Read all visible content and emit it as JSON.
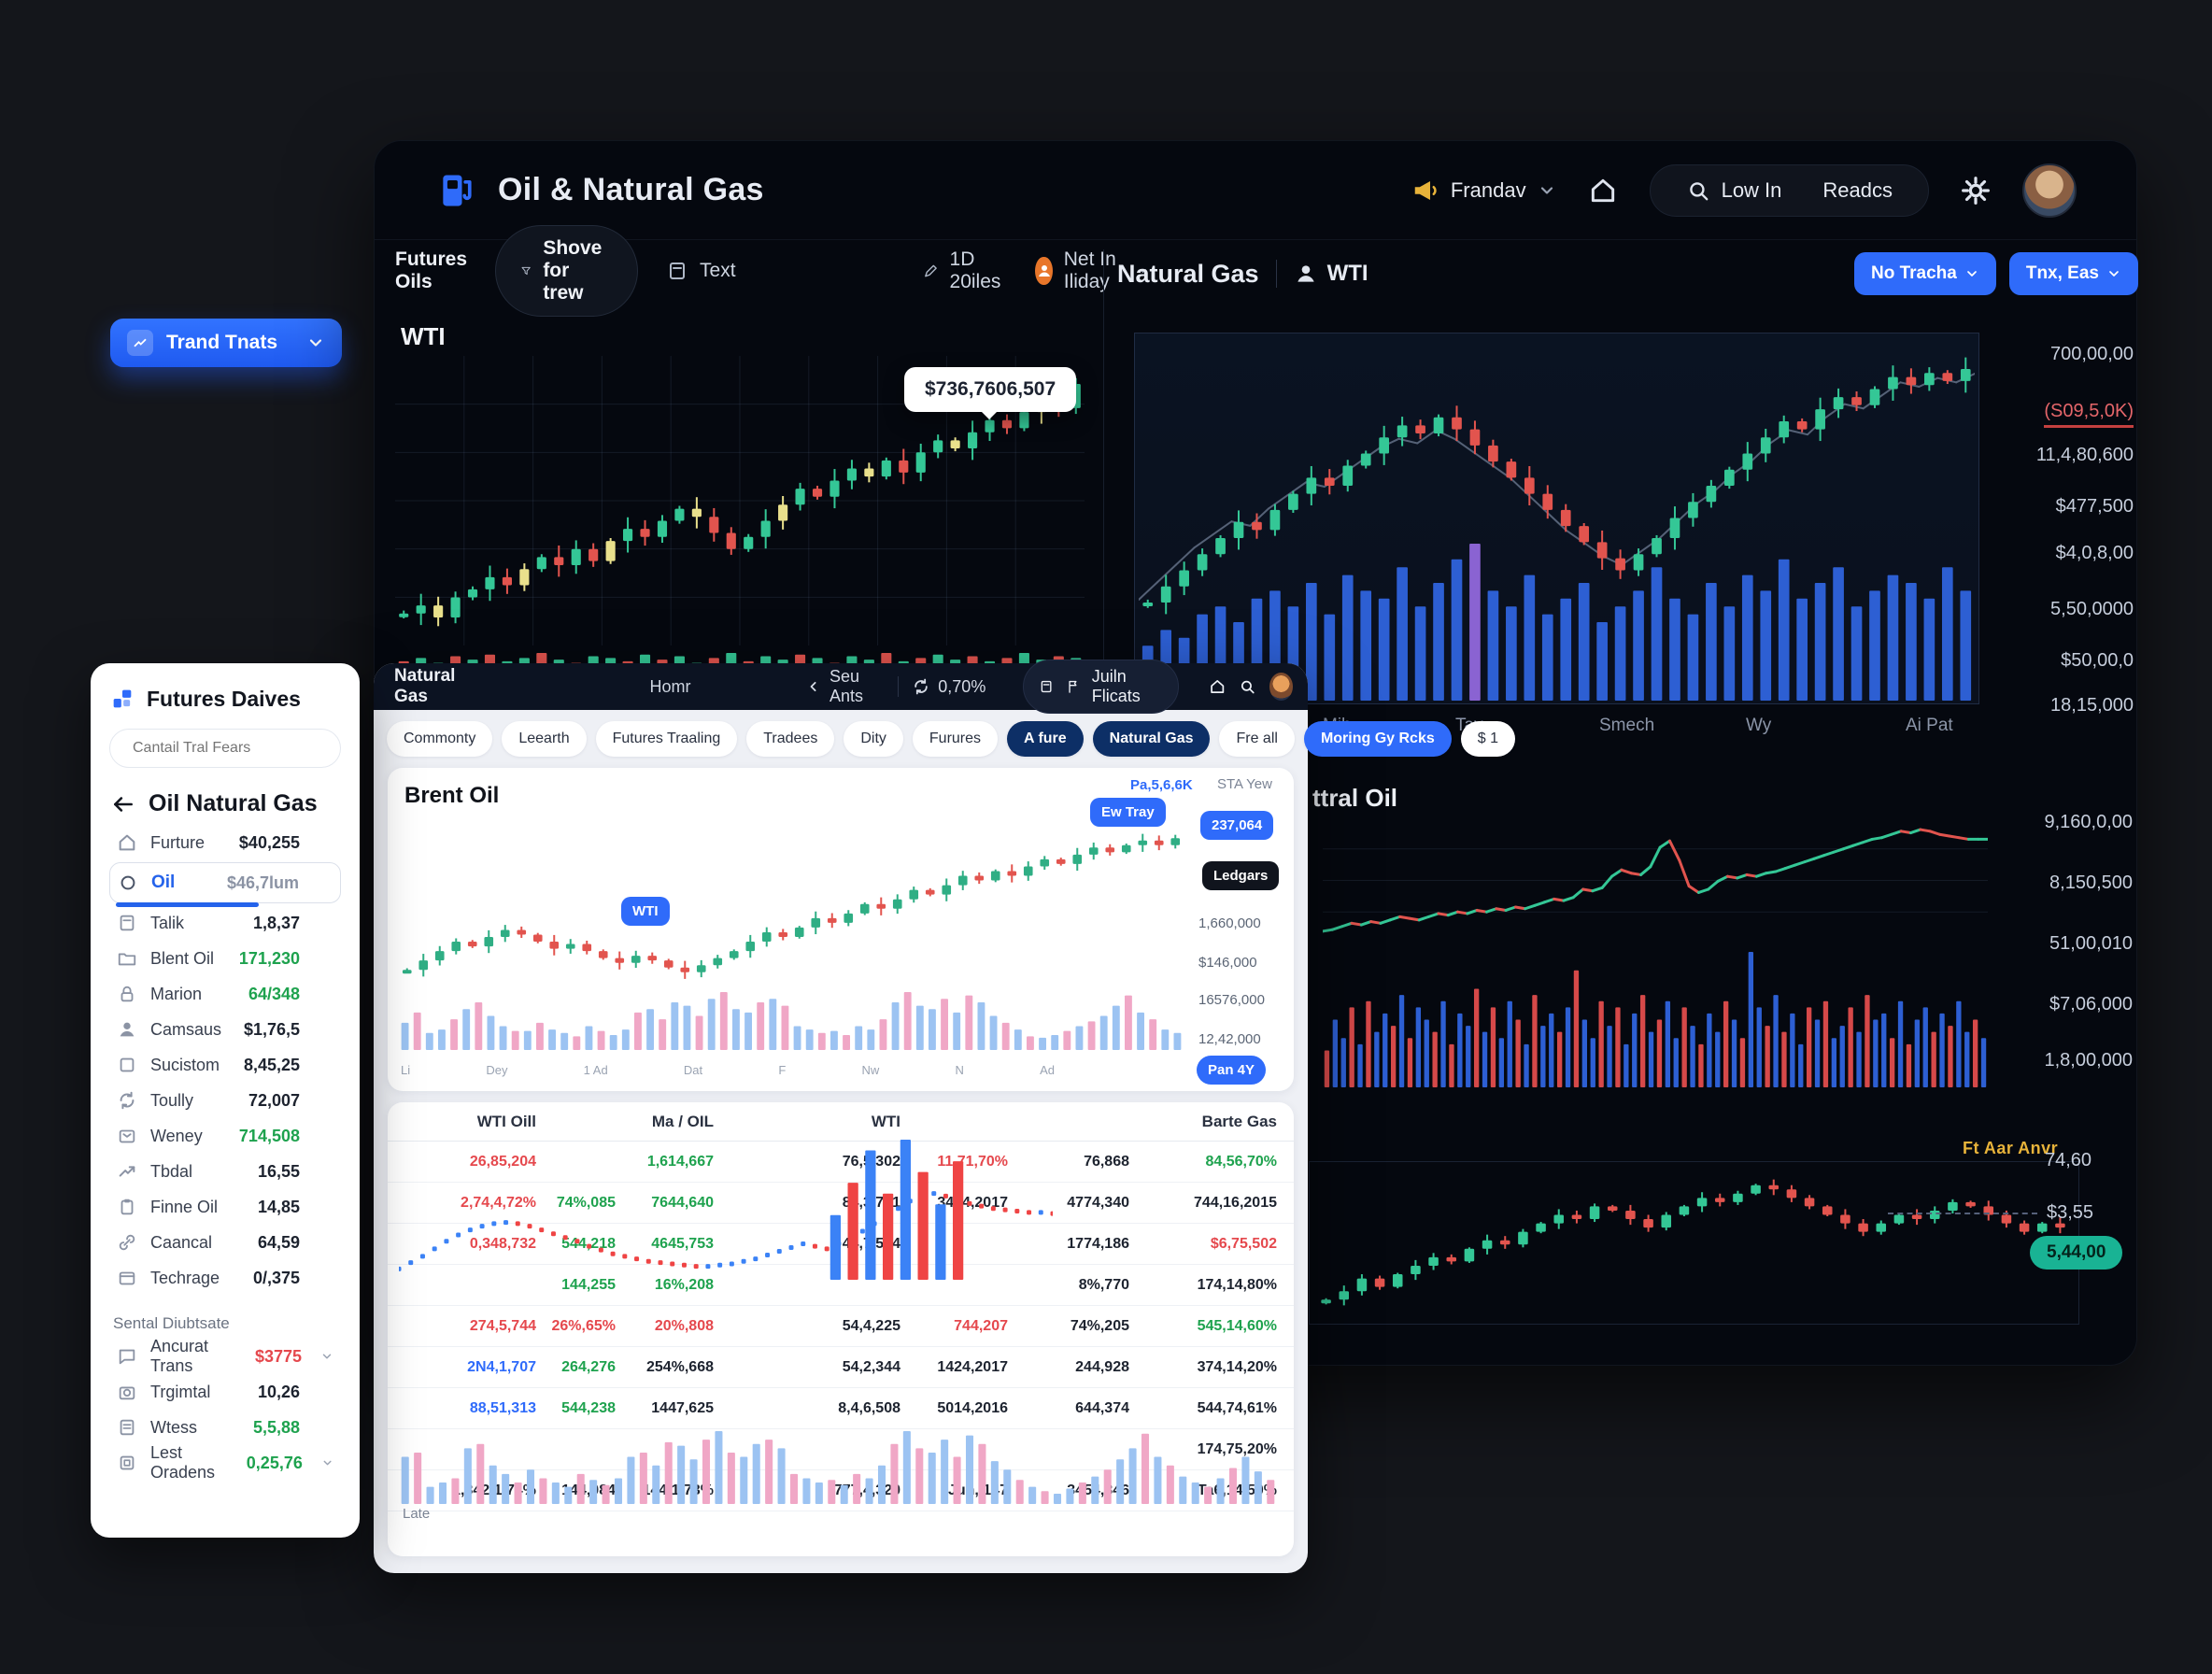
{
  "palette": {
    "accent_blue": "#2f6bfa",
    "navy_chip": "#0d2f66",
    "green": "#1ea24e",
    "red": "#e5484d",
    "candle_up": "#34c796",
    "candle_down": "#e2544e",
    "candle_accent": "#e9e08c",
    "vol_blue": "#2d5fd3",
    "vol_light_blue": "#9cc3f2",
    "vol_pink": "#f0a7c6",
    "teal_badge": "#19b394",
    "yellow": "#e8b33a"
  },
  "floating_button": {
    "label": "Trand Tnats"
  },
  "main_window": {
    "header": {
      "title": "Oil & Natural Gas",
      "market_label": "Frandav",
      "login_label": "Low In",
      "signup_label": "Readcs"
    },
    "left_panel": {
      "toolbar": {
        "title": "Futures Oils",
        "filter_label": "Shove for trew",
        "text_label": "Text",
        "range_label": "1D 20iles",
        "net_label": "Net In Iliday"
      },
      "symbol": "WTI",
      "tooltip_value": "$736,7606,507"
    },
    "right_panel": {
      "title": "Natural Gas",
      "symbol": "WTI",
      "button_primary": "No Tracha",
      "button_secondary": "Tnx, Eas",
      "y_labels": [
        "700,00,00",
        "(S09,5,0K)",
        "11,4,80,600",
        "$477,500",
        "$4,0,8,00",
        "5,50,0000",
        "$50,00,0",
        "18,15,000"
      ],
      "x_labels": [
        "Mih",
        "Tav",
        "Smech",
        "Wy",
        "Ai Pat"
      ]
    },
    "mid_panel": {
      "title": "ttral Oil",
      "y_labels": [
        "9,160,0,00",
        "8,150,500",
        "51,00,010",
        "$7,06,000",
        "1,8,00,000"
      ]
    },
    "bottom_panel": {
      "annotation": "Ft Aar Anvr",
      "y_label_top": "74,60",
      "y_label_mid": "$3,55",
      "price_badge": "5,44,00"
    }
  },
  "sidebar": {
    "title": "Futures Daives",
    "search_placeholder": "Cantail Tral Fears",
    "back_heading": "Oil Natural Gas",
    "items": [
      {
        "icon": "home",
        "label": "Furture",
        "value": "$40,255",
        "vc": "k"
      },
      {
        "icon": "circle",
        "label": "Oil",
        "value": "$46,7lum",
        "vc": "gr",
        "selected": true
      },
      {
        "icon": "doc",
        "label": "Talik",
        "value": "1,8,37",
        "vc": "k"
      },
      {
        "icon": "folder",
        "label": "Blent Oil",
        "value": "171,230",
        "vc": "g"
      },
      {
        "icon": "lock",
        "label": "Marion",
        "value": "64/348",
        "vc": "g"
      },
      {
        "icon": "person",
        "label": "Camsaus",
        "value": "$1,76,5",
        "vc": "k"
      },
      {
        "icon": "square",
        "label": "Sucistom",
        "value": "8,45,25",
        "vc": "k"
      },
      {
        "icon": "refresh",
        "label": "Toully",
        "value": "72,007",
        "vc": "k"
      },
      {
        "icon": "mail",
        "label": "Weney",
        "value": "714,508",
        "vc": "g"
      },
      {
        "icon": "trend",
        "label": "Tbdal",
        "value": "16,55",
        "vc": "k"
      },
      {
        "icon": "clipboard",
        "label": "Finne Oil",
        "value": "14,85",
        "vc": "k"
      },
      {
        "icon": "link",
        "label": "Caancal",
        "value": "64,59",
        "vc": "k"
      },
      {
        "icon": "card",
        "label": "Techrage",
        "value": "0/,375",
        "vc": "k"
      }
    ],
    "section2": "Sental Diubtsate",
    "items2": [
      {
        "icon": "chat",
        "label": "Ancurat Trans",
        "value": "$3775",
        "vc": "r",
        "chev": true
      },
      {
        "icon": "camera",
        "label": "Trgimtal",
        "value": "10,26",
        "vc": "k"
      },
      {
        "icon": "note",
        "label": "Wtess",
        "value": "5,5,88",
        "vc": "g"
      },
      {
        "icon": "grid",
        "label": "Lest Oradens",
        "value": "0,25,76",
        "vc": "g",
        "chev": true
      }
    ]
  },
  "white_window": {
    "titlebar": {
      "title": "Natural Gas",
      "center": "Homr",
      "back_label": "Seu Ants",
      "percent": "0,70%",
      "pill_label": "Juiln Flicats"
    },
    "nav_chips": [
      {
        "label": "Commonty",
        "style": "light"
      },
      {
        "label": "Leearth",
        "style": "light"
      },
      {
        "label": "Futures Traaling",
        "style": "light"
      },
      {
        "label": "Tradees",
        "style": "light"
      },
      {
        "label": "Dity",
        "style": "light"
      },
      {
        "label": "Furures",
        "style": "light"
      },
      {
        "label": "A fure",
        "style": "navy"
      },
      {
        "label": "Natural Gas",
        "style": "navy"
      },
      {
        "label": "Fre all",
        "style": "light"
      },
      {
        "label": "Moring Gy Rcks",
        "style": "blue"
      },
      {
        "label": "$ 1",
        "style": "light"
      }
    ],
    "chart": {
      "title": "Brent Oil",
      "link": "Pa,5,6,6K",
      "muted": "STA Yew",
      "badge_mid": "WTI",
      "badge_top": "Ew Tray",
      "badge_value": "237,064",
      "badge_dark": "Ledgars",
      "badge_bottom": "Pan 4Y",
      "y_labels": [
        "1,660,000",
        "$146,000",
        "16576,000",
        "12,42,000"
      ],
      "x_labels": [
        "Li",
        "Dey",
        "1 Ad",
        "Dat",
        "F",
        "Nw",
        "N",
        "Ad"
      ]
    },
    "table": {
      "headers": [
        "WTI Oill",
        "",
        "Ma / OIL",
        "WTI",
        "",
        "",
        "Barte Gas"
      ],
      "rows": [
        [
          "26,85,204|r",
          "",
          "1,614,667|g",
          "76,5,302|k",
          "11,71,70%|r",
          "76,868|k",
          "84,56,70%|g"
        ],
        [
          "2,74,4,72%|r",
          "74%,085|g",
          "7644,640|g",
          "84,3,771|k",
          "3414,2017|k",
          "4774,340|k",
          "744,16,2015|k"
        ],
        [
          "0,348,732|r",
          "544,218|g",
          "4645,753|g",
          "44,7,574|k",
          "",
          "1774,186|k",
          "$6,75,502|r"
        ],
        [
          "",
          "144,255|g",
          "16%,208|g",
          "",
          "",
          "8%,770|k",
          "174,14,80%|k"
        ],
        [
          "274,5,744|r",
          "26%,65%|r",
          "20%,808|r",
          "54,4,225|k",
          "744,207|r",
          "74%,205|k",
          "545,14,60%|g"
        ],
        [
          "2N4,1,707|b",
          "264,276|g",
          "254%,668|k",
          "54,2,344|k",
          "1424,2017|k",
          "244,928|k",
          "374,14,20%|k"
        ],
        [
          "88,51,313|b",
          "544,238|g",
          "1447,625|k",
          "8,4,6,508|k",
          "5014,2016|k",
          "644,374|k",
          "544,74,61%|k"
        ],
        [
          "",
          "",
          "",
          "",
          "",
          "",
          "174,75,20%|k"
        ],
        [
          "1,342,1,74%|k",
          "144,084|k",
          "144,1,73%|k",
          "777,4,320|k",
          "Jun, 147|k",
          "3454,846|k",
          "Ta6,14,50%|k"
        ]
      ],
      "footer": "Late"
    }
  },
  "charts": {
    "left_candles": {
      "type": "candle",
      "values": [
        34,
        36,
        33,
        38,
        40,
        43,
        41,
        45,
        48,
        46,
        50,
        47,
        52,
        55,
        53,
        57,
        60,
        58,
        54,
        50,
        53,
        57,
        61,
        65,
        63,
        67,
        70,
        68,
        72,
        69,
        74,
        77,
        75,
        79,
        82,
        80,
        84,
        87,
        85,
        91
      ],
      "up": "#34c796",
      "down": "#e2544e",
      "accent": "#e9e08c",
      "accent_every": 5,
      "grid": {
        "h": 5,
        "v": 9
      }
    },
    "left_ticks": {
      "type": "bars",
      "values": [
        4,
        6,
        3,
        7,
        5,
        8,
        4,
        6,
        9,
        5,
        3,
        7,
        6,
        4,
        8,
        5,
        7,
        3,
        6,
        9,
        4,
        7,
        5,
        8,
        6,
        3,
        7,
        5,
        9,
        4,
        6,
        8,
        5,
        7,
        4,
        6,
        9,
        5,
        7,
        6
      ],
      "colors": [
        "#e2544e",
        "#34c796",
        "#34c796",
        "#e2544e",
        "#34c796"
      ]
    },
    "right_ma": {
      "type": "line",
      "values": [
        46,
        50,
        54,
        58,
        61,
        64,
        63,
        67,
        70,
        73,
        72,
        75,
        78,
        81,
        83,
        82,
        85,
        83,
        80,
        77,
        74,
        70,
        66,
        62,
        59,
        56,
        54,
        57,
        60,
        64,
        68,
        71,
        75,
        78,
        82,
        85,
        84,
        88,
        91,
        90,
        93,
        96,
        95,
        97,
        96,
        98
      ],
      "color": "#7e8da6",
      "w": 2
    },
    "right_candles": {
      "type": "candle",
      "values": [
        42,
        46,
        50,
        54,
        58,
        62,
        60,
        65,
        69,
        73,
        71,
        76,
        79,
        83,
        86,
        84,
        88,
        85,
        81,
        77,
        73,
        69,
        65,
        61,
        57,
        53,
        50,
        54,
        58,
        63,
        67,
        71,
        75,
        79,
        83,
        87,
        85,
        90,
        93,
        91,
        95,
        98,
        96,
        99,
        97,
        100
      ],
      "up": "#34c796",
      "down": "#e2544e"
    },
    "right_vol": {
      "type": "bars",
      "values": [
        35,
        45,
        40,
        55,
        60,
        50,
        65,
        70,
        60,
        75,
        55,
        80,
        70,
        65,
        85,
        60,
        75,
        90,
        100,
        70,
        60,
        80,
        55,
        65,
        75,
        50,
        60,
        70,
        85,
        65,
        55,
        75,
        60,
        80,
        70,
        90,
        65,
        75,
        85,
        60,
        70,
        80,
        75,
        65,
        85,
        70
      ],
      "colors": [
        "#2d5fd3"
      ],
      "highlight": {
        "index": 18,
        "color": "#8a63d2"
      }
    },
    "mid_line": {
      "type": "line",
      "values": [
        22,
        23,
        25,
        27,
        26,
        28,
        27,
        29,
        31,
        30,
        29,
        31,
        33,
        32,
        34,
        33,
        35,
        34,
        36,
        35,
        37,
        36,
        38,
        40,
        42,
        41,
        43,
        48,
        47,
        49,
        56,
        60,
        58,
        57,
        62,
        74,
        78,
        66,
        50,
        46,
        48,
        53,
        56,
        55,
        57,
        56,
        58,
        59,
        61,
        63,
        65,
        67,
        69,
        71,
        73,
        75,
        77,
        79,
        80,
        82,
        84,
        83,
        85,
        84,
        82,
        81,
        80,
        79,
        79,
        79
      ],
      "slope_up": "#34c796",
      "slope_down": "#e2544e",
      "w": 3,
      "grid": {
        "h": 3
      }
    },
    "mid_bars": {
      "type": "bars",
      "values": [
        30,
        55,
        40,
        65,
        35,
        70,
        45,
        60,
        50,
        75,
        40,
        65,
        55,
        45,
        70,
        35,
        60,
        50,
        80,
        45,
        65,
        40,
        70,
        55,
        35,
        75,
        50,
        60,
        45,
        65,
        95,
        55,
        40,
        70,
        50,
        65,
        35,
        60,
        75,
        45,
        55,
        70,
        40,
        65,
        50,
        35,
        60,
        45,
        70,
        55,
        40,
        110,
        65,
        50,
        75,
        45,
        60,
        35,
        65,
        55,
        70,
        40,
        50,
        65,
        45,
        75,
        55,
        60,
        40,
        70,
        35,
        55,
        65,
        45,
        60,
        50,
        70,
        45,
        55,
        40
      ],
      "colors": [
        "#d64949",
        "#2d5fd3",
        "#2d5fd3",
        "#d64949",
        "#2d5fd3",
        "#d64949",
        "#2d5fd3",
        "#2d5fd3",
        "#d64949",
        "#2d5fd3"
      ]
    },
    "bottom_candles": {
      "type": "candle",
      "values": [
        52,
        54,
        57,
        55,
        58,
        60,
        62,
        61,
        64,
        66,
        65,
        68,
        70,
        72,
        71,
        74,
        73,
        71,
        69,
        72,
        74,
        76,
        75,
        77,
        79,
        78,
        76,
        74,
        72,
        70,
        68,
        70,
        72,
        71,
        73,
        75,
        74,
        72,
        70,
        68,
        70,
        69
      ],
      "up": "#34c796",
      "down": "#e2544e"
    },
    "brent_candles": {
      "type": "candle",
      "values": [
        44,
        48,
        52,
        56,
        54,
        58,
        61,
        59,
        56,
        53,
        55,
        52,
        49,
        47,
        50,
        48,
        45,
        43,
        46,
        49,
        52,
        56,
        60,
        58,
        62,
        66,
        64,
        68,
        72,
        70,
        74,
        78,
        76,
        80,
        84,
        82,
        86,
        84,
        88,
        91,
        89,
        93,
        96,
        94,
        97,
        99,
        97,
        100
      ],
      "up": "#2fae84",
      "down": "#e2544e"
    },
    "brent_vol": {
      "type": "bars",
      "values": [
        40,
        55,
        25,
        30,
        45,
        60,
        70,
        50,
        35,
        28,
        28,
        40,
        30,
        25,
        20,
        35,
        28,
        22,
        30,
        55,
        60,
        45,
        70,
        65,
        50,
        75,
        85,
        60,
        55,
        70,
        75,
        65,
        35,
        30,
        25,
        28,
        22,
        35,
        30,
        45,
        70,
        85,
        65,
        60,
        75,
        55,
        80,
        70,
        50,
        40,
        30,
        20,
        18,
        22,
        28,
        35,
        42,
        50,
        65,
        80,
        55,
        45,
        30,
        25
      ],
      "colors": [
        "#9cc3f2",
        "#f0a7c6",
        "#9cc3f2",
        "#9cc3f2",
        "#f0a7c6",
        "#9cc3f2",
        "#f0a7c6",
        "#9cc3f2",
        "#9cc3f2",
        "#f0a7c6"
      ]
    },
    "table_dots": {
      "type": "dots",
      "values": [
        30,
        35,
        40,
        46,
        52,
        57,
        61,
        64,
        66,
        67,
        66,
        64,
        61,
        58,
        55,
        52,
        48,
        45,
        42,
        40,
        38,
        36,
        35,
        34,
        33,
        32,
        32,
        33,
        34,
        36,
        38,
        41,
        44,
        47,
        50,
        48,
        46,
        50,
        55,
        60,
        66,
        72,
        78,
        84,
        88,
        90,
        88,
        85,
        82,
        80,
        78,
        77,
        76,
        75,
        75,
        74
      ],
      "slope_up": "#3b82f6",
      "slope_down": "#ef4444"
    },
    "table_spikes": {
      "type": "bars",
      "values": [
        60,
        90,
        120,
        80,
        130,
        100,
        70,
        110
      ],
      "colors": [
        "#3b82f6",
        "#ef4444",
        "#3b82f6",
        "#ef4444"
      ]
    },
    "table_bars": {
      "type": "bars",
      "values": [
        55,
        60,
        20,
        25,
        30,
        65,
        70,
        45,
        35,
        25,
        40,
        30,
        25,
        20,
        35,
        28,
        22,
        30,
        55,
        60,
        45,
        72,
        68,
        52,
        75,
        85,
        60,
        55,
        70,
        75,
        65,
        35,
        30,
        25,
        28,
        22,
        35,
        30,
        45,
        70,
        85,
        65,
        60,
        75,
        55,
        80,
        70,
        50,
        40,
        28,
        20,
        15,
        12,
        18,
        25,
        32,
        40,
        52,
        65,
        82,
        55,
        45,
        32,
        25,
        20,
        30,
        42,
        55,
        38,
        28
      ],
      "colors": [
        "#9cc3f2",
        "#f0a7c6",
        "#9cc3f2",
        "#9cc3f2",
        "#f0a7c6",
        "#9cc3f2",
        "#f0a7c6",
        "#9cc3f2",
        "#9cc3f2",
        "#f0a7c6"
      ]
    }
  }
}
